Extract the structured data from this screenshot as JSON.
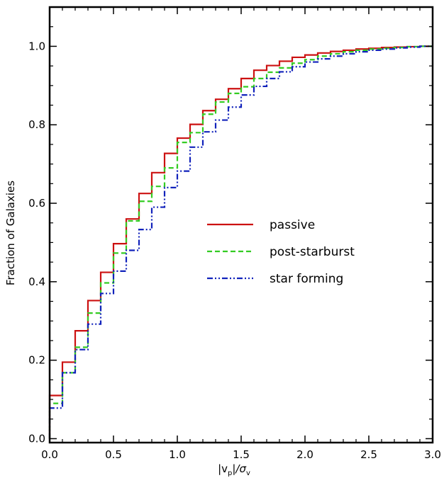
{
  "chart_data": {
    "type": "line",
    "step": true,
    "title": "",
    "xlabel": "|v_p|/σ_v",
    "xlabel_parts": {
      "open": "|v",
      "sub1": "p",
      "mid": "|/σ",
      "sub2": "v"
    },
    "ylabel": "Fraction of Galaxies",
    "xlim": [
      0,
      3
    ],
    "ylim": [
      -0.01,
      1.1
    ],
    "xticks": [
      0.0,
      0.5,
      1.0,
      1.5,
      2.0,
      2.5,
      3.0
    ],
    "xtick_labels": [
      "0.0",
      "0.5",
      "1.0",
      "1.5",
      "2.0",
      "2.5",
      "3.0"
    ],
    "yticks": [
      0.0,
      0.2,
      0.4,
      0.6,
      0.8,
      1.0
    ],
    "ytick_labels": [
      "0.0",
      "0.2",
      "0.4",
      "0.6",
      "0.8",
      "1.0"
    ],
    "grid": false,
    "legend_position": "center-right",
    "bin_width": 0.1,
    "series": [
      {
        "name": "passive",
        "color": "#cc1111",
        "dash": "solid",
        "values": [
          0.0,
          0.11,
          0.195,
          0.275,
          0.352,
          0.424,
          0.497,
          0.56,
          0.625,
          0.678,
          0.727,
          0.766,
          0.801,
          0.836,
          0.865,
          0.892,
          0.918,
          0.939,
          0.951,
          0.962,
          0.972,
          0.978,
          0.983,
          0.987,
          0.99,
          0.993,
          0.995,
          0.997,
          0.998,
          0.999,
          1.0
        ]
      },
      {
        "name": "post-starburst",
        "color": "#33cc22",
        "dash": "dashed",
        "values": [
          0.0,
          0.09,
          0.168,
          0.233,
          0.32,
          0.397,
          0.473,
          0.555,
          0.605,
          0.643,
          0.69,
          0.755,
          0.78,
          0.827,
          0.858,
          0.88,
          0.897,
          0.918,
          0.934,
          0.945,
          0.957,
          0.966,
          0.975,
          0.981,
          0.986,
          0.99,
          0.993,
          0.995,
          0.997,
          0.999,
          1.0
        ]
      },
      {
        "name": "star forming",
        "color": "#1122bb",
        "dash": "dash-dot-dot",
        "values": [
          0.0,
          0.078,
          0.168,
          0.227,
          0.292,
          0.37,
          0.427,
          0.48,
          0.533,
          0.59,
          0.64,
          0.682,
          0.743,
          0.782,
          0.812,
          0.845,
          0.876,
          0.898,
          0.918,
          0.935,
          0.948,
          0.96,
          0.968,
          0.975,
          0.981,
          0.986,
          0.99,
          0.993,
          0.996,
          0.998,
          1.0
        ]
      }
    ]
  }
}
